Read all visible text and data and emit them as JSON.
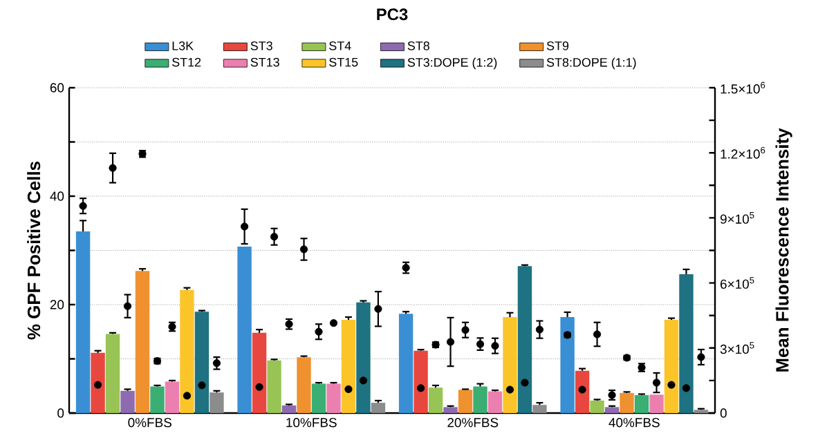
{
  "chart_data": {
    "type": "bar",
    "title": "PC3",
    "ylabel": "% GPF Positive Cells",
    "y2label": "Mean Fluorescence Intensity",
    "categories": [
      "0%FBS",
      "10%FBS",
      "20%FBS",
      "40%FBS"
    ],
    "series": [
      {
        "name": "L3K",
        "color": "#3a8fd4",
        "values": [
          33.5,
          30.7,
          18.3,
          17.7
        ],
        "errors": [
          2,
          null,
          0.4,
          0.9
        ]
      },
      {
        "name": "ST3",
        "color": "#e8473f",
        "values": [
          11.1,
          14.8,
          11.5,
          7.8
        ],
        "errors": [
          0.4,
          0.6,
          0.2,
          0.4
        ]
      },
      {
        "name": "ST4",
        "color": "#98c455",
        "values": [
          14.6,
          9.7,
          4.7,
          2.3
        ],
        "errors": [
          0.2,
          0.2,
          0.4,
          0.2
        ]
      },
      {
        "name": "ST8",
        "color": "#8e6bb0",
        "values": [
          4.1,
          1.4,
          1.1,
          1.1
        ],
        "errors": [
          0.3,
          0.2,
          0.2,
          0.2
        ]
      },
      {
        "name": "ST9",
        "color": "#f0912f",
        "values": [
          26.2,
          10.3,
          4.3,
          3.7
        ],
        "errors": [
          0.4,
          0.2,
          0.1,
          0.2
        ]
      },
      {
        "name": "ST12",
        "color": "#3aae73",
        "values": [
          4.9,
          5.4,
          4.9,
          3.3
        ],
        "errors": [
          0.2,
          0.2,
          0.5,
          0.2
        ]
      },
      {
        "name": "ST13",
        "color": "#eb80b0",
        "values": [
          5.8,
          5.4,
          4.0,
          3.4
        ],
        "errors": [
          0.2,
          0.2,
          0.2,
          null
        ]
      },
      {
        "name": "ST15",
        "color": "#fbc52a",
        "values": [
          22.7,
          17.2,
          17.7,
          17.2
        ],
        "errors": [
          0.4,
          0.5,
          0.8,
          0.3
        ]
      },
      {
        "name": "ST3:DOPE (1:2)",
        "color": "#1e7282",
        "values": [
          18.7,
          20.4,
          27.1,
          25.6
        ],
        "errors": [
          0.2,
          0.3,
          0.2,
          0.9
        ]
      },
      {
        "name": "ST8:DOPE (1:1)",
        "color": "#8c8c8c",
        "values": [
          3.8,
          1.9,
          1.5,
          0.6
        ],
        "errors": [
          0.3,
          0.4,
          0.4,
          0.2
        ]
      },
      {
        "type": "scatter",
        "axis": "y2",
        "color": "#000000",
        "values": [
          955000,
          860000,
          670000,
          360000
        ],
        "errors": [
          35000,
          80000,
          25000,
          10000
        ]
      },
      {
        "type": "scatter",
        "axis": "y2",
        "color": "#000000",
        "values": [
          130000,
          120000,
          115000,
          108000
        ],
        "errors": [
          null,
          null,
          null,
          null
        ]
      },
      {
        "type": "scatter",
        "axis": "y2",
        "color": "#000000",
        "values": [
          1130000,
          813000,
          315000,
          363000
        ],
        "errors": [
          68000,
          38000,
          12000,
          55000
        ]
      },
      {
        "type": "scatter",
        "axis": "y2",
        "color": "#000000",
        "values": [
          493000,
          410000,
          328000,
          83000
        ],
        "errors": [
          53000,
          23000,
          112000,
          22000
        ]
      },
      {
        "type": "scatter",
        "axis": "y2",
        "color": "#000000",
        "values": [
          1195000,
          755000,
          383000,
          255000
        ],
        "errors": [
          15000,
          50000,
          35000,
          10000
        ]
      },
      {
        "type": "scatter",
        "axis": "y2",
        "color": "#000000",
        "values": [
          240000,
          375000,
          318000,
          210000
        ],
        "errors": [
          12000,
          35000,
          28000,
          18000
        ]
      },
      {
        "type": "scatter",
        "axis": "y2",
        "color": "#000000",
        "values": [
          398000,
          415000,
          310000,
          140000
        ],
        "errors": [
          20000,
          null,
          35000,
          45000
        ]
      },
      {
        "type": "scatter",
        "axis": "y2",
        "color": "#000000",
        "values": [
          80000,
          110000,
          108000,
          130000
        ],
        "errors": [
          null,
          null,
          null,
          null
        ]
      },
      {
        "type": "scatter",
        "axis": "y2",
        "color": "#000000",
        "values": [
          128000,
          150000,
          140000,
          115000
        ],
        "errors": [
          null,
          null,
          null,
          null
        ]
      },
      {
        "type": "scatter",
        "axis": "y2",
        "color": "#000000",
        "values": [
          230000,
          480000,
          385000,
          258000
        ],
        "errors": [
          28000,
          80000,
          40000,
          35000
        ]
      }
    ],
    "ylim": [
      0,
      60
    ],
    "yticks": [
      0,
      {
        "value": 10,
        "label": null
      },
      20,
      {
        "value": 30,
        "label": null
      },
      40,
      {
        "value": 50,
        "label": null
      },
      60
    ],
    "y2lim": [
      0,
      1500000
    ],
    "y2ticks": [
      {
        "value": 0,
        "label": "0"
      },
      {
        "value": 150000,
        "label": null
      },
      {
        "value": 300000,
        "label": "3×10$^{5}$"
      },
      {
        "value": 450000,
        "label": null
      },
      {
        "value": 600000,
        "label": "6×10$^{5}$"
      },
      {
        "value": 750000,
        "label": null
      },
      {
        "value": 900000,
        "label": "9×10$^{5}$"
      },
      {
        "value": 1050000,
        "label": null
      },
      {
        "value": 1200000,
        "label": "1.2×10$^{6}$"
      },
      {
        "value": 1350000,
        "label": null
      },
      {
        "value": 1500000,
        "label": "1.5×10$^{6}$"
      }
    ],
    "grid": "y",
    "legend": "top",
    "marker": "circle"
  }
}
